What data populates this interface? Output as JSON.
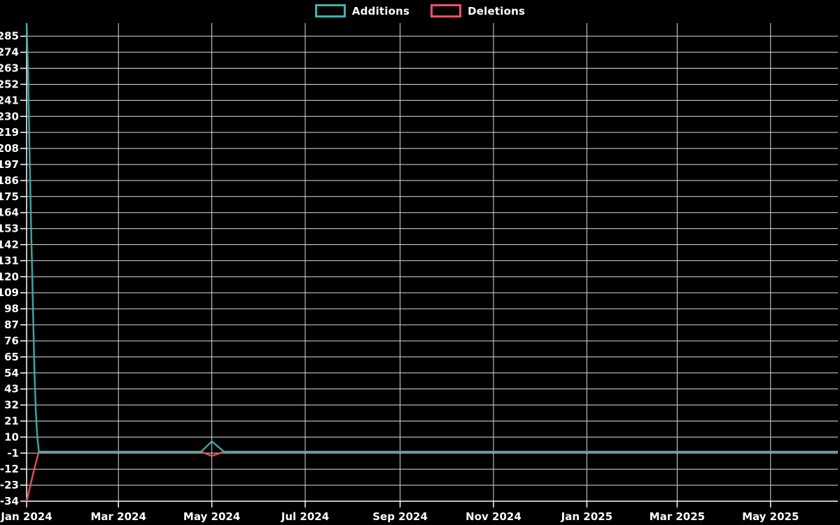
{
  "page": {
    "background_color": "#000000",
    "text_color": "#ffffff"
  },
  "legend": {
    "position": "top-center",
    "items": [
      {
        "label": "Additions",
        "color": "#3fb1ae"
      },
      {
        "label": "Deletions",
        "color": "#ef5168"
      }
    ]
  },
  "chart_data": {
    "type": "line",
    "title": "",
    "xlabel": "",
    "ylabel": "",
    "grid": true,
    "legend_position": "top-center",
    "colors": {
      "background": "#000000",
      "grid": "#dcdcdc",
      "axis": "#ffffff",
      "tick_text": "#ffffff",
      "additions": "#3fb1ae",
      "deletions": "#ef5168"
    },
    "x_axis": {
      "start_date": "2024-01-01",
      "end_date": "2025-06-14",
      "ticks": [
        {
          "label": "Jan 2024",
          "date": "2024-01-01"
        },
        {
          "label": "Mar 2024",
          "date": "2024-03-01"
        },
        {
          "label": "May 2024",
          "date": "2024-05-01"
        },
        {
          "label": "Jul 2024",
          "date": "2024-07-01"
        },
        {
          "label": "Sep 2024",
          "date": "2024-09-01"
        },
        {
          "label": "Nov 2024",
          "date": "2024-11-01"
        },
        {
          "label": "Jan 2025",
          "date": "2025-01-01"
        },
        {
          "label": "Mar 2025",
          "date": "2025-03-01"
        },
        {
          "label": "May 2025",
          "date": "2025-05-01"
        }
      ]
    },
    "y_axis": {
      "min": -34,
      "max": 294,
      "tick_step": 11,
      "ticks": [
        285,
        274,
        263,
        252,
        241,
        230,
        219,
        208,
        197,
        186,
        175,
        164,
        153,
        142,
        131,
        120,
        109,
        98,
        87,
        76,
        65,
        54,
        43,
        32,
        21,
        10,
        -1,
        -12,
        -23,
        -34
      ]
    },
    "series": [
      {
        "name": "Additions",
        "color": "#3fb1ae",
        "points": [
          {
            "date": "2024-01-01",
            "value": 294
          },
          {
            "date": "2024-01-02",
            "value": 259
          },
          {
            "date": "2024-01-03",
            "value": 200
          },
          {
            "date": "2024-01-04",
            "value": 150
          },
          {
            "date": "2024-01-05",
            "value": 108
          },
          {
            "date": "2024-01-06",
            "value": 60
          },
          {
            "date": "2024-01-07",
            "value": 28
          },
          {
            "date": "2024-01-08",
            "value": 10
          },
          {
            "date": "2024-01-09",
            "value": 0
          },
          {
            "date": "2024-04-24",
            "value": 0
          },
          {
            "date": "2024-05-01",
            "value": 7
          },
          {
            "date": "2024-05-09",
            "value": 0
          },
          {
            "date": "2025-06-14",
            "value": 0
          }
        ]
      },
      {
        "name": "Deletions",
        "color": "#ef5168",
        "points": [
          {
            "date": "2024-01-01",
            "value": -34
          },
          {
            "date": "2024-01-03",
            "value": -25
          },
          {
            "date": "2024-01-06",
            "value": -12
          },
          {
            "date": "2024-01-09",
            "value": 0
          },
          {
            "date": "2024-04-24",
            "value": 0
          },
          {
            "date": "2024-05-01",
            "value": -3
          },
          {
            "date": "2024-05-09",
            "value": 0
          },
          {
            "date": "2025-06-14",
            "value": 0
          }
        ]
      }
    ]
  }
}
